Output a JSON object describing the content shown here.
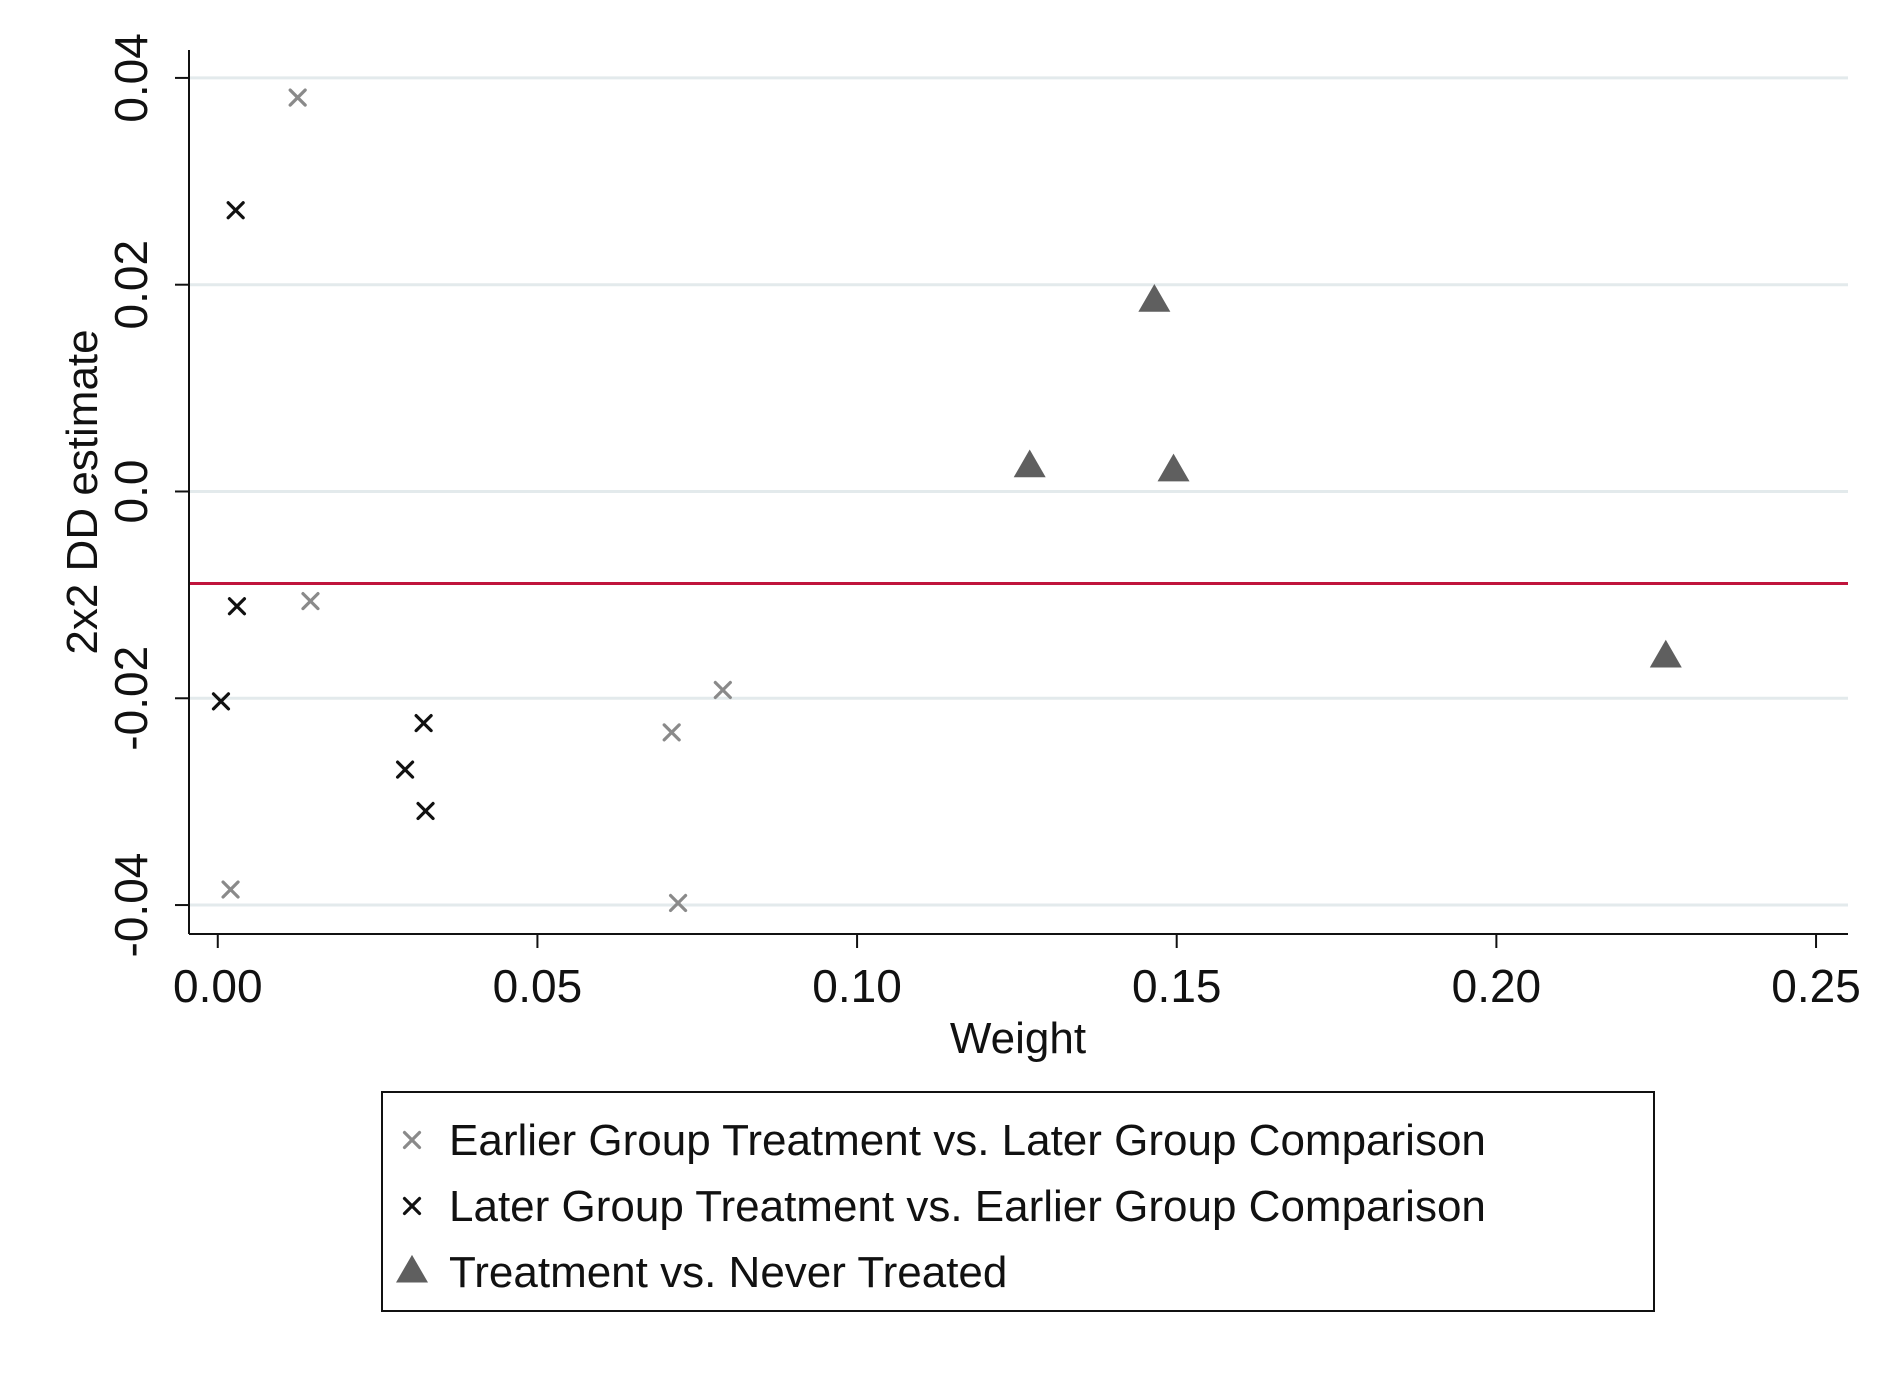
{
  "chart_data": {
    "type": "scatter",
    "title": "",
    "xlabel": "Weight",
    "ylabel": "2x2 DD estimate",
    "xlim": [
      -0.0045,
      0.255
    ],
    "ylim": [
      -0.0428,
      0.0427
    ],
    "x_ticks": [
      0.0,
      0.05,
      0.1,
      0.15,
      0.2,
      0.25
    ],
    "x_tick_labels": [
      "0.00",
      "0.05",
      "0.10",
      "0.15",
      "0.20",
      "0.25"
    ],
    "y_ticks": [
      -0.04,
      -0.02,
      0.0,
      0.02,
      0.04
    ],
    "y_tick_labels": [
      "-0.04",
      "-0.02",
      "0.0",
      "0.02",
      "0.04"
    ],
    "grid": "horizontal",
    "reference_line": {
      "y": -0.0089,
      "color": "#c0143c"
    },
    "legend_position": "bottom",
    "series": [
      {
        "name": "Earlier Group Treatment vs. Later Group Comparison",
        "marker": "x",
        "color": "#8a8a8a",
        "points": [
          {
            "x": 0.0125,
            "y": 0.0381
          },
          {
            "x": 0.0145,
            "y": -0.0106
          },
          {
            "x": 0.002,
            "y": -0.0385
          },
          {
            "x": 0.071,
            "y": -0.0233
          },
          {
            "x": 0.079,
            "y": -0.0192
          },
          {
            "x": 0.072,
            "y": -0.0398
          }
        ]
      },
      {
        "name": "Later Group Treatment vs. Earlier Group Comparison",
        "marker": "x",
        "color": "#111111",
        "points": [
          {
            "x": 0.0028,
            "y": 0.0272
          },
          {
            "x": 0.003,
            "y": -0.0111
          },
          {
            "x": 0.0005,
            "y": -0.0203
          },
          {
            "x": 0.0322,
            "y": -0.0224
          },
          {
            "x": 0.0293,
            "y": -0.0269
          },
          {
            "x": 0.0325,
            "y": -0.0309
          }
        ]
      },
      {
        "name": "Treatment vs. Never Treated",
        "marker": "triangle",
        "color": "#5f5f5f",
        "points": [
          {
            "x": 0.1465,
            "y": 0.0184
          },
          {
            "x": 0.127,
            "y": 0.0024
          },
          {
            "x": 0.1495,
            "y": 0.002
          },
          {
            "x": 0.2265,
            "y": -0.016
          }
        ]
      }
    ]
  }
}
